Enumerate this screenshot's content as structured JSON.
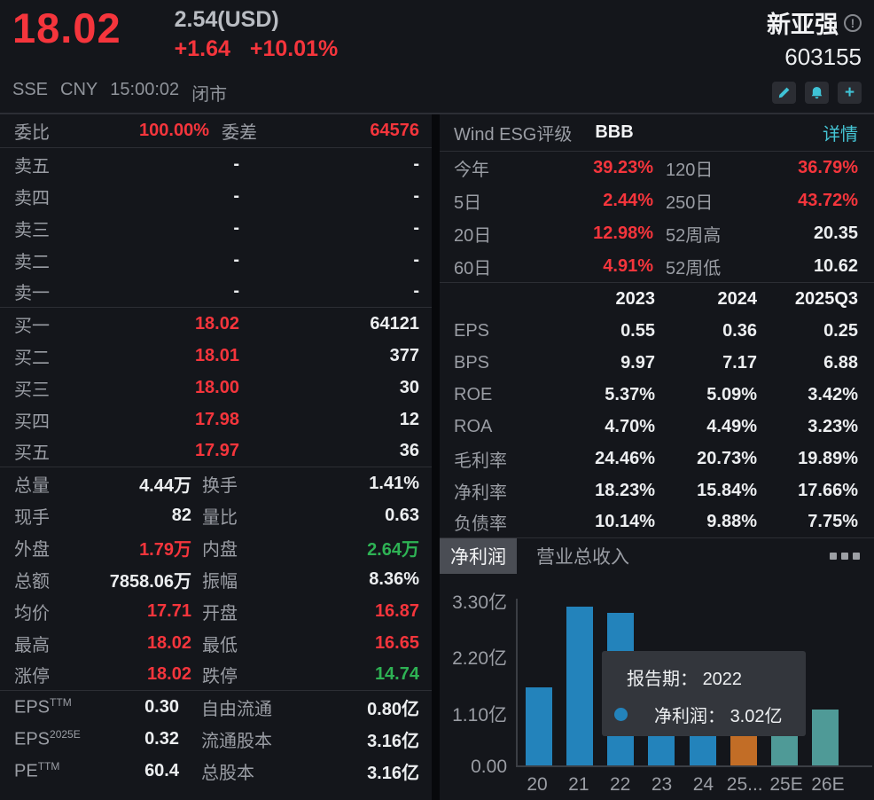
{
  "colors": {
    "red": "#f5353c",
    "green": "#2eb254",
    "link": "#45c5d5",
    "bar_blue": "#2383bb",
    "bar_orange": "#c26d26",
    "bar_teal": "#4f9a97"
  },
  "header": {
    "price": "18.02",
    "usd_price": "2.54(USD)",
    "change": "+1.64",
    "change_pct": "+10.01%",
    "stock_name": "新亚强",
    "stock_code": "603155",
    "exchange": "SSE",
    "currency": "CNY",
    "time": "15:00:02",
    "market_status": "闭市",
    "edit_icon": "pencil-icon",
    "alert_icon": "bell-icon",
    "add_icon": "plus-icon"
  },
  "order_book": {
    "weibi_label": "委比",
    "weibi_value": "100.00%",
    "weicha_label": "委差",
    "weicha_value": "64576",
    "sells": [
      {
        "label": "卖五",
        "price": "-",
        "volume": "-"
      },
      {
        "label": "卖四",
        "price": "-",
        "volume": "-"
      },
      {
        "label": "卖三",
        "price": "-",
        "volume": "-"
      },
      {
        "label": "卖二",
        "price": "-",
        "volume": "-"
      },
      {
        "label": "卖一",
        "price": "-",
        "volume": "-"
      }
    ],
    "buys": [
      {
        "label": "买一",
        "price": "18.02",
        "volume": "64121"
      },
      {
        "label": "买二",
        "price": "18.01",
        "volume": "377"
      },
      {
        "label": "买三",
        "price": "18.00",
        "volume": "30"
      },
      {
        "label": "买四",
        "price": "17.98",
        "volume": "12"
      },
      {
        "label": "买五",
        "price": "17.97",
        "volume": "36"
      }
    ]
  },
  "stats": {
    "rows": [
      {
        "l1": "总量",
        "v1": "4.44万",
        "c1": "white",
        "l2": "换手",
        "v2": "1.41%",
        "c2": "white"
      },
      {
        "l1": "现手",
        "v1": "82",
        "c1": "white",
        "l2": "量比",
        "v2": "0.63",
        "c2": "white"
      },
      {
        "l1": "外盘",
        "v1": "1.79万",
        "c1": "red",
        "l2": "内盘",
        "v2": "2.64万",
        "c2": "green"
      },
      {
        "l1": "总额",
        "v1": "7858.06万",
        "c1": "white",
        "l2": "振幅",
        "v2": "8.36%",
        "c2": "white"
      },
      {
        "l1": "均价",
        "v1": "17.71",
        "c1": "red",
        "l2": "开盘",
        "v2": "16.87",
        "c2": "red"
      },
      {
        "l1": "最高",
        "v1": "18.02",
        "c1": "red",
        "l2": "最低",
        "v2": "16.65",
        "c2": "red"
      },
      {
        "l1": "涨停",
        "v1": "18.02",
        "c1": "red",
        "l2": "跌停",
        "v2": "14.74",
        "c2": "green"
      }
    ]
  },
  "fundamentals": {
    "rows": [
      {
        "base": "EPS",
        "sup": "TTM",
        "value": "0.30",
        "l2": "自由流通",
        "v2": "0.80亿"
      },
      {
        "base": "EPS",
        "sup": "2025E",
        "value": "0.32",
        "l2": "流通股本",
        "v2": "3.16亿"
      },
      {
        "base": "PE",
        "sup": "TTM",
        "value": "60.4",
        "l2": "总股本",
        "v2": "3.16亿"
      }
    ]
  },
  "esg": {
    "label": "Wind ESG评级",
    "rating": "BBB",
    "link": "详情"
  },
  "performance": {
    "rows": [
      {
        "l1": "今年",
        "v1": "39.23%",
        "c1": "red",
        "l2": "120日",
        "v2": "36.79%",
        "c2": "red"
      },
      {
        "l1": "5日",
        "v1": "2.44%",
        "c1": "red",
        "l2": "250日",
        "v2": "43.72%",
        "c2": "red"
      },
      {
        "l1": "20日",
        "v1": "12.98%",
        "c1": "red",
        "l2": "52周高",
        "v2": "20.35",
        "c2": "white"
      },
      {
        "l1": "60日",
        "v1": "4.91%",
        "c1": "red",
        "l2": "52周低",
        "v2": "10.62",
        "c2": "white"
      }
    ]
  },
  "financial_table": {
    "columns": [
      "2023",
      "2024",
      "2025Q3"
    ],
    "rows": [
      {
        "label": "EPS",
        "values": [
          "0.55",
          "0.36",
          "0.25"
        ]
      },
      {
        "label": "BPS",
        "values": [
          "9.97",
          "7.17",
          "6.88"
        ]
      },
      {
        "label": "ROE",
        "values": [
          "5.37%",
          "5.09%",
          "3.42%"
        ]
      },
      {
        "label": "ROA",
        "values": [
          "4.70%",
          "4.49%",
          "3.23%"
        ]
      },
      {
        "label": "毛利率",
        "values": [
          "24.46%",
          "20.73%",
          "19.89%"
        ]
      },
      {
        "label": "净利率",
        "values": [
          "18.23%",
          "15.84%",
          "17.66%"
        ]
      },
      {
        "label": "负债率",
        "values": [
          "10.14%",
          "9.88%",
          "7.75%"
        ]
      }
    ]
  },
  "chart_tabs": {
    "selected": "净利润",
    "other": "营业总收入"
  },
  "chart_data": {
    "type": "bar",
    "title": "净利润",
    "series_name": "净利润",
    "categories": [
      "20",
      "21",
      "22",
      "23",
      "24",
      "25...",
      "25E",
      "26E"
    ],
    "values": [
      1.55,
      3.15,
      3.02,
      1.74,
      1.14,
      0.79,
      1.01,
      1.1
    ],
    "unit": "亿",
    "bar_colors": [
      "blue",
      "blue",
      "blue",
      "blue",
      "blue",
      "orange",
      "teal",
      "teal"
    ],
    "yticks": [
      "3.30亿",
      "2.20亿",
      "1.10亿",
      "0.00"
    ],
    "ylim": [
      0,
      3.3
    ],
    "xlabel": "",
    "ylabel": "",
    "grid": false,
    "legend_position": "none"
  },
  "tooltip": {
    "line1_label": "报告期：",
    "line1_value": "2022",
    "line2_label": "净利润：",
    "line2_value": "3.02亿"
  }
}
